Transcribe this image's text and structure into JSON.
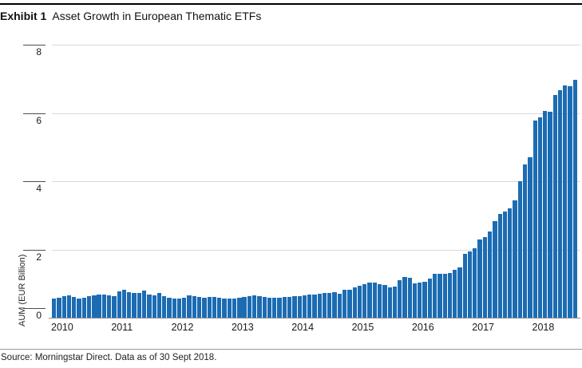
{
  "header": {
    "exhibit_label": "Exhibit 1",
    "title": "Asset Growth in European Thematic ETFs"
  },
  "footer": {
    "source": "Source: Morningstar Direct. Data as of 30 Sept 2018."
  },
  "chart_data": {
    "type": "bar",
    "title": "Asset Growth in European Thematic ETFs",
    "ylabel": "AUM (EUR Billion)",
    "unit": "EUR Billion",
    "ylim": [
      0,
      8
    ],
    "yticks": [
      0,
      2,
      4,
      6,
      8
    ],
    "grid": true,
    "bar_color": "#1c6cb3",
    "x_tick_labels": [
      "2010",
      "2011",
      "2012",
      "2013",
      "2014",
      "2015",
      "2016",
      "2017",
      "2018"
    ],
    "frequency": "monthly",
    "start_month": "2010-01",
    "end_month": "2018-09",
    "values": [
      0.55,
      0.59,
      0.63,
      0.66,
      0.6,
      0.55,
      0.59,
      0.63,
      0.66,
      0.68,
      0.69,
      0.66,
      0.64,
      0.78,
      0.81,
      0.75,
      0.72,
      0.73,
      0.8,
      0.69,
      0.66,
      0.72,
      0.62,
      0.58,
      0.57,
      0.57,
      0.58,
      0.65,
      0.62,
      0.6,
      0.59,
      0.61,
      0.61,
      0.59,
      0.57,
      0.55,
      0.56,
      0.58,
      0.61,
      0.63,
      0.65,
      0.64,
      0.61,
      0.59,
      0.58,
      0.59,
      0.6,
      0.61,
      0.62,
      0.64,
      0.65,
      0.67,
      0.69,
      0.71,
      0.72,
      0.73,
      0.74,
      0.71,
      0.83,
      0.81,
      0.9,
      0.94,
      0.99,
      1.02,
      1.04,
      0.99,
      0.97,
      0.9,
      0.91,
      1.1,
      1.2,
      1.17,
      1.0,
      1.03,
      1.06,
      1.15,
      1.28,
      1.28,
      1.29,
      1.32,
      1.4,
      1.47,
      1.88,
      1.95,
      2.03,
      2.3,
      2.36,
      2.53,
      2.83,
      3.03,
      3.1,
      3.2,
      3.45,
      4.0,
      4.5,
      4.7,
      5.77,
      5.87,
      6.05,
      6.04,
      6.52,
      6.66,
      6.8,
      6.78,
      6.96
    ]
  }
}
